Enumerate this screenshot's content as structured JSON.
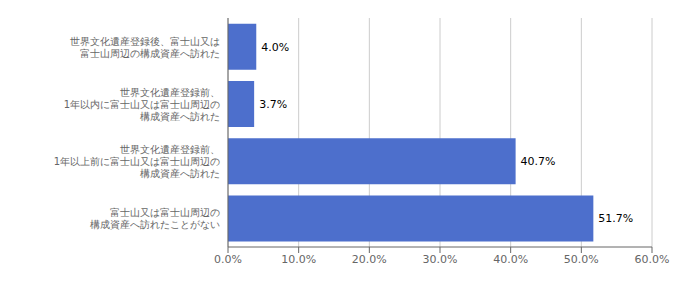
{
  "chart_data": {
    "type": "bar",
    "orientation": "horizontal",
    "categories": [
      "富士山又は富士山周辺の\n構成資産へ訪れたことがない",
      "世界文化遺産登録前、\n1年以上前に富士山又は富士山周辺の\n構成資産へ訪れた",
      "世界文化遺産登録前、\n1年以内に富士山又は富士山周辺の\n構成資産へ訪れた",
      "世界文化遺産登録後、富士山又は\n富士山周辺の構成資産へ訪れた"
    ],
    "values": [
      51.7,
      40.7,
      3.7,
      4.0
    ],
    "value_labels": [
      "51.7%",
      "40.7%",
      "3.7%",
      "4.0%"
    ],
    "color": "#4d6fcc",
    "xlim": [
      0,
      60
    ],
    "xticks": [
      {
        "value": 0,
        "label": "0.0%"
      },
      {
        "value": 10,
        "label": "10.0%"
      },
      {
        "value": 20,
        "label": "20.0%"
      },
      {
        "value": 30,
        "label": "30.0%"
      },
      {
        "value": 40,
        "label": "40.0%"
      },
      {
        "value": 50,
        "label": "50.0%"
      },
      {
        "value": 60,
        "label": "60.0%"
      }
    ],
    "grid": true,
    "data_labels": true
  }
}
